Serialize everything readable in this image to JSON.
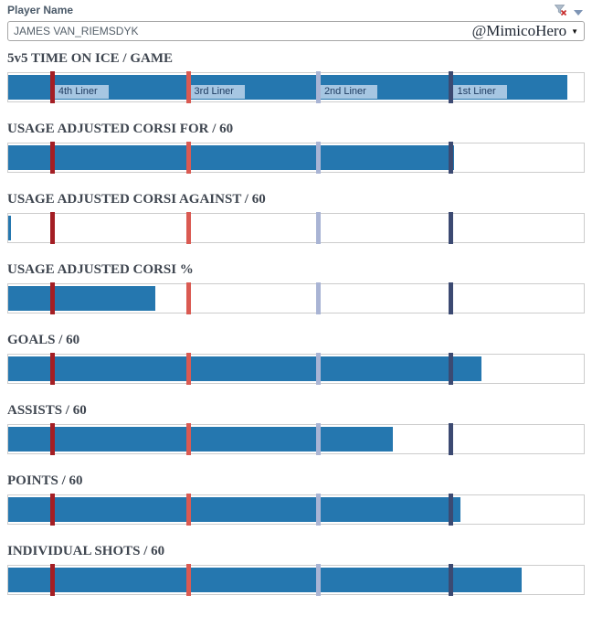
{
  "header": {
    "filter_label": "Player Name",
    "player_name": "JAMES VAN_RIEMSDYK",
    "attribution": "@MimicoHero",
    "combo_caret": "▼",
    "icons": {
      "clear_filter": "funnel-with-red-x",
      "menu_caret": "caret-down"
    }
  },
  "colors": {
    "bar": "#2577AF",
    "ref_4th_liner": "#A41E24",
    "ref_3rd_liner": "#DA5A52",
    "ref_2nd_liner": "#A9B4D4",
    "ref_1st_liner": "#3C4A72",
    "ref_label_bg": "#A6C6E2",
    "ref_label_text": "#1E3A5F",
    "title_text": "#3F4650",
    "track_border": "#CCCCCC"
  },
  "chart_data": {
    "type": "bar",
    "orientation": "horizontal",
    "axis": {
      "range_pct": [
        0,
        100
      ],
      "ticks_visible": false,
      "grid": false
    },
    "reference_lines": [
      {
        "label": "4th Liner",
        "pos_pct": 7.6,
        "color": "#A41E24"
      },
      {
        "label": "3rd Liner",
        "pos_pct": 31.2,
        "color": "#DA5A52"
      },
      {
        "label": "2nd Liner",
        "pos_pct": 53.8,
        "color": "#A9B4D4"
      },
      {
        "label": "1st Liner",
        "pos_pct": 76.9,
        "color": "#3C4A72"
      }
    ],
    "ref_labels_shown_on_first_chart_only": true,
    "charts": [
      {
        "title": "5v5 TIME ON ICE / GAME",
        "value_pct": 97.2,
        "show_ref_labels": true
      },
      {
        "title": "USAGE ADJUSTED CORSI FOR / 60",
        "value_pct": 77.4,
        "show_ref_labels": false
      },
      {
        "title": "USAGE ADJUSTED CORSI AGAINST / 60",
        "value_pct": 0.5,
        "show_ref_labels": false
      },
      {
        "title": "USAGE ADJUSTED CORSI %",
        "value_pct": 25.5,
        "show_ref_labels": false
      },
      {
        "title": "GOALS / 60",
        "value_pct": 82.3,
        "show_ref_labels": false
      },
      {
        "title": "ASSISTS / 60",
        "value_pct": 66.9,
        "show_ref_labels": false
      },
      {
        "title": "POINTS / 60",
        "value_pct": 78.6,
        "show_ref_labels": false
      },
      {
        "title": "INDIVIDUAL SHOTS / 60",
        "value_pct": 89.2,
        "show_ref_labels": false
      }
    ]
  }
}
